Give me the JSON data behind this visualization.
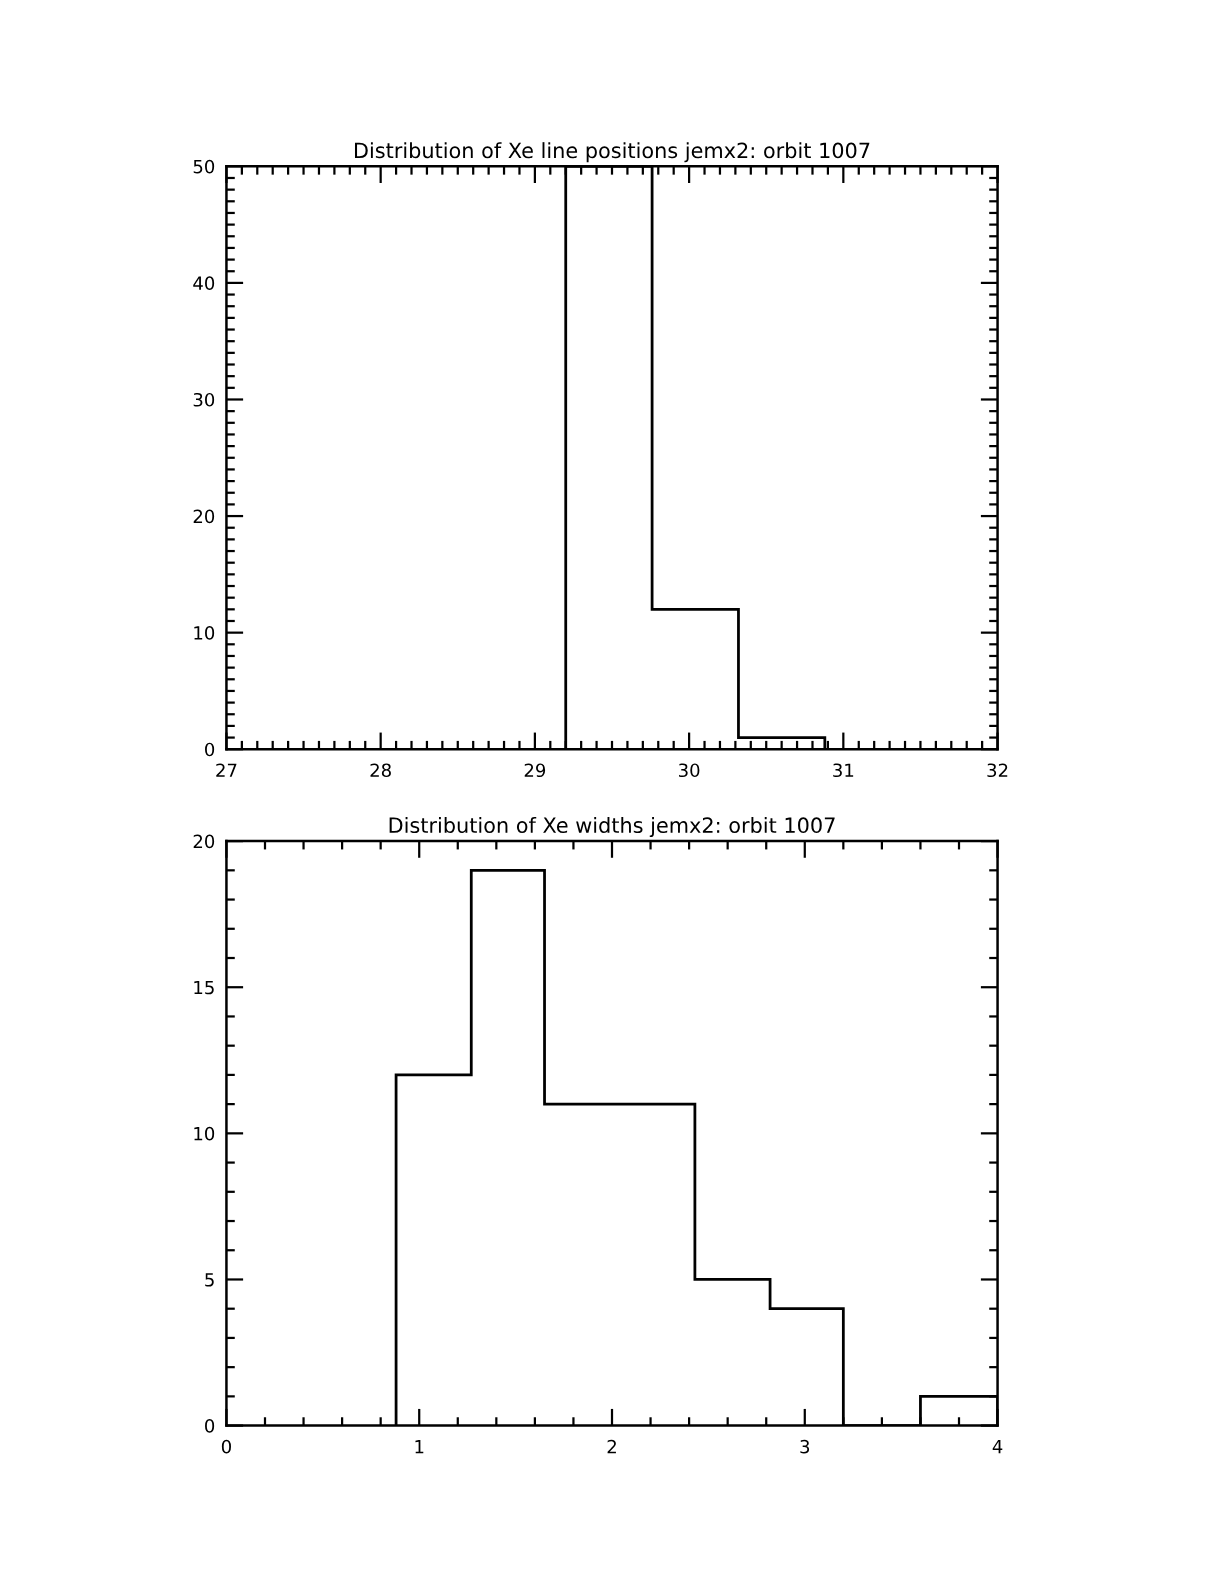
{
  "chart_data": [
    {
      "type": "histogram",
      "title": "Distribution of Xe line positions jemx2: orbit 1007",
      "bins": [
        29.2,
        29.76,
        30.32,
        30.88
      ],
      "values": [
        50,
        12,
        1
      ],
      "color": "#000000",
      "xlim": [
        27,
        32
      ],
      "xticks": [
        27,
        28,
        29,
        30,
        31,
        32
      ],
      "ylim": [
        0,
        50
      ],
      "yticks": [
        0,
        10,
        20,
        30,
        40,
        50
      ]
    },
    {
      "type": "histogram",
      "title": "Distribution of Xe widths jemx2: orbit 1007",
      "bins": [
        0.88,
        1.27,
        1.65,
        2.04,
        2.43,
        2.82,
        3.2,
        3.6,
        4.0
      ],
      "values": [
        12,
        19,
        11,
        11,
        5,
        4,
        0,
        1
      ],
      "color": "#000000",
      "xlim": [
        0,
        4
      ],
      "xticks": [
        0,
        1,
        2,
        3,
        4
      ],
      "ylim": [
        0,
        20
      ],
      "yticks": [
        0,
        5,
        10,
        15,
        20
      ]
    }
  ]
}
